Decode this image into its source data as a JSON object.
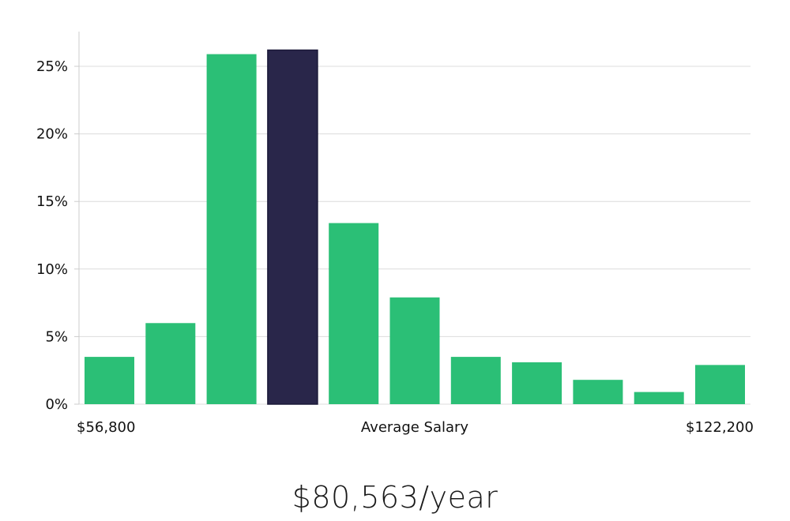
{
  "chart_data": {
    "type": "bar",
    "title": "",
    "ylabel": "",
    "xlabel": "Average Salary",
    "x_start_label": "$56,800",
    "x_end_label": "$122,200",
    "yticks": [
      "0%",
      "5%",
      "10%",
      "15%",
      "20%",
      "25%"
    ],
    "ytick_values": [
      0,
      5,
      10,
      15,
      20,
      25
    ],
    "ylim": [
      0,
      27.5
    ],
    "values": [
      3.5,
      6.0,
      25.9,
      26.2,
      13.4,
      7.9,
      3.5,
      3.1,
      1.8,
      0.9,
      2.9
    ],
    "highlight_index": 3,
    "colors": {
      "bar": "#2bbf76",
      "highlight": "#29264a",
      "highlight_border": "#1a1838"
    }
  },
  "summary": "$80,563/year"
}
